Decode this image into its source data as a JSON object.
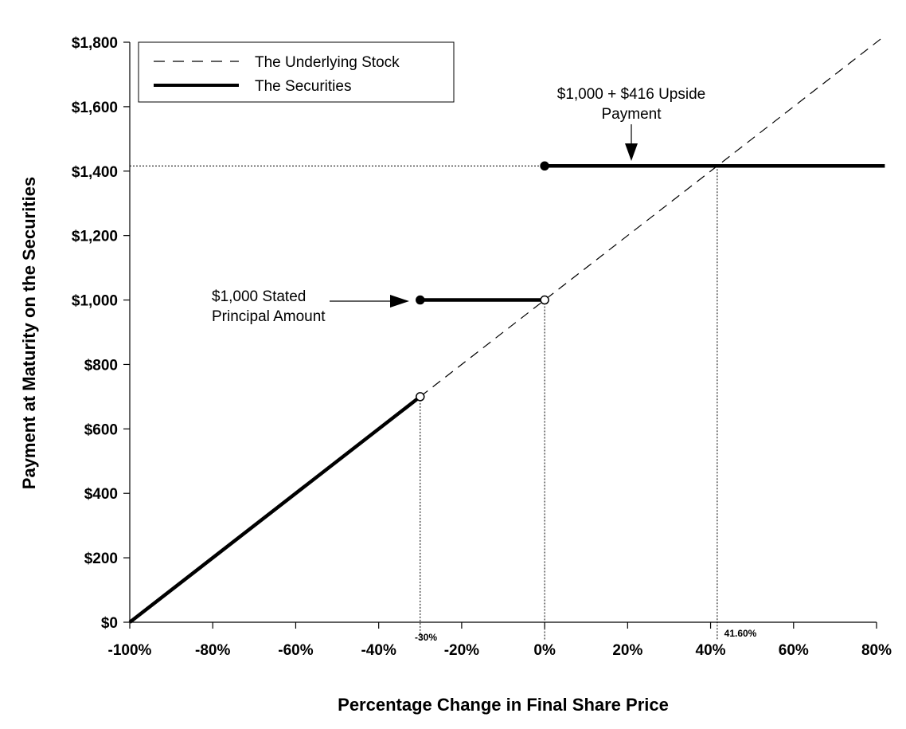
{
  "chart_data": {
    "type": "line",
    "title": "",
    "xlabel": "Percentage Change in Final Share Price",
    "ylabel": "Payment at Maturity on the Securities",
    "xlim": [
      -100,
      80
    ],
    "ylim": [
      0,
      1800
    ],
    "grid": false,
    "legend_position": "top-left",
    "x_ticks": [
      -100,
      -80,
      -60,
      -40,
      -20,
      0,
      20,
      40,
      60,
      80
    ],
    "x_tick_labels": [
      "-100%",
      "-80%",
      "-60%",
      "-40%",
      "-20%",
      "0%",
      "20%",
      "40%",
      "60%",
      "80%"
    ],
    "y_ticks": [
      0,
      200,
      400,
      600,
      800,
      1000,
      1200,
      1400,
      1600,
      1800
    ],
    "y_tick_labels": [
      "$0",
      "$200",
      "$400",
      "$600",
      "$800",
      "$1,000",
      "$1,200",
      "$1,400",
      "$1,600",
      "$1,800"
    ],
    "series": [
      {
        "name": "The Underlying Stock",
        "style": "dashed",
        "color": "#000000",
        "x": [
          -30,
          82
        ],
        "y": [
          700,
          1820
        ]
      },
      {
        "name": "The Securities",
        "style": "solid-thick",
        "color": "#000000",
        "segments": [
          {
            "x": [
              -100,
              -30
            ],
            "y": [
              0,
              700
            ]
          },
          {
            "x": [
              -30,
              0
            ],
            "y": [
              1000,
              1000
            ]
          },
          {
            "x": [
              0,
              82
            ],
            "y": [
              1416,
              1416
            ]
          }
        ]
      }
    ],
    "markers": [
      {
        "x": -30,
        "y": 700,
        "filled": false
      },
      {
        "x": -30,
        "y": 1000,
        "filled": true
      },
      {
        "x": 0,
        "y": 1000,
        "filled": false
      },
      {
        "x": 0,
        "y": 1416,
        "filled": true
      }
    ],
    "reference_lines": [
      {
        "orientation": "vertical",
        "x": -30,
        "y_to": 700
      },
      {
        "orientation": "vertical",
        "x": 0,
        "y_to": 1000
      },
      {
        "orientation": "vertical",
        "x": 41.6,
        "y_to": 1416
      },
      {
        "orientation": "horizontal",
        "y": 1416,
        "x_from": -100,
        "x_to": 0
      }
    ],
    "annotations": {
      "upside_line1": "$1,000 + $416 Upside",
      "upside_line2": "Payment",
      "stated_line1": "$1,000 Stated",
      "stated_line2": "Principal Amount",
      "marker_minus30": "-30%",
      "marker_0": "0%",
      "marker_41_6": "41.60%"
    },
    "legend": {
      "items": [
        "The Underlying Stock",
        "The Securities"
      ]
    }
  }
}
